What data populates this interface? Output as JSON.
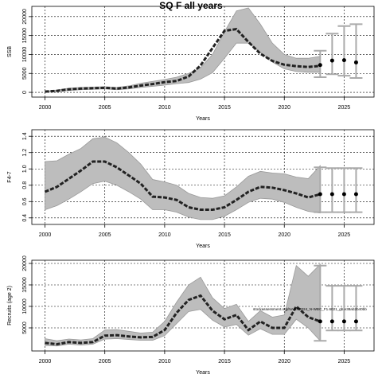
{
  "chart_data": [
    {
      "type": "line",
      "title": "SQ F all years",
      "ylabel": "SSB",
      "xlabel": "Years",
      "xlim": [
        1998.9,
        2027.5
      ],
      "xticks": [
        2000,
        2005,
        2010,
        2015,
        2020,
        2025
      ],
      "ylim": [
        -1250,
        22700
      ],
      "yticks": [
        0,
        5000,
        10000,
        15000,
        20000
      ],
      "grid": true,
      "x": [
        2000,
        2001,
        2002,
        2003,
        2004,
        2005,
        2006,
        2007,
        2008,
        2009,
        2010,
        2011,
        2012,
        2013,
        2014,
        2015,
        2016,
        2017,
        2018,
        2019,
        2020,
        2021,
        2022,
        2023
      ],
      "values": [
        200,
        400,
        800,
        1000,
        1100,
        1200,
        1000,
        1300,
        1800,
        2200,
        2700,
        3000,
        4200,
        7100,
        11700,
        16250,
        16700,
        13300,
        10200,
        8300,
        7300,
        6900,
        6700,
        7000
      ],
      "upper": [
        300,
        600,
        1100,
        1300,
        1400,
        1500,
        1300,
        1700,
        2400,
        2900,
        3400,
        4000,
        5000,
        6500,
        10000,
        16000,
        21500,
        22300,
        18000,
        13000,
        10000,
        9000,
        9000,
        9500
      ],
      "lower": [
        100,
        200,
        500,
        700,
        800,
        900,
        700,
        900,
        1300,
        1600,
        1900,
        2300,
        2600,
        3500,
        5200,
        9000,
        13000,
        13000,
        10500,
        8000,
        6200,
        5500,
        5300,
        5300
      ],
      "forecast": {
        "x": [
          2023,
          2024,
          2025,
          2026
        ],
        "values": [
          7200,
          8400,
          8500,
          7900
        ],
        "lower": [
          4000,
          4800,
          4400,
          3800
        ],
        "upper": [
          11000,
          15500,
          17500,
          18000
        ]
      }
    },
    {
      "type": "line",
      "ylabel": "F4-7",
      "xlabel": "Years",
      "xlim": [
        1998.9,
        2027.5
      ],
      "xticks": [
        2000,
        2005,
        2010,
        2015,
        2020,
        2025
      ],
      "ylim": [
        0.32,
        1.48
      ],
      "yticks": [
        0.4,
        0.6,
        0.8,
        {
          "value": 1,
          "label": "1.0"
        },
        1.2,
        1.4
      ],
      "grid": true,
      "x": [
        2000,
        2001,
        2002,
        2003,
        2004,
        2005,
        2006,
        2007,
        2008,
        2009,
        2010,
        2011,
        2012,
        2013,
        2014,
        2015,
        2016,
        2017,
        2018,
        2019,
        2020,
        2021,
        2022,
        2023
      ],
      "values": [
        0.72,
        0.78,
        0.88,
        0.98,
        1.09,
        1.09,
        1.02,
        0.92,
        0.82,
        0.66,
        0.65,
        0.62,
        0.53,
        0.5,
        0.5,
        0.53,
        0.62,
        0.72,
        0.78,
        0.77,
        0.74,
        0.7,
        0.65,
        0.69
      ],
      "upper": [
        1.09,
        1.1,
        1.18,
        1.25,
        1.37,
        1.39,
        1.32,
        1.2,
        1.06,
        0.87,
        0.84,
        0.8,
        0.7,
        0.65,
        0.64,
        0.67,
        0.78,
        0.91,
        0.97,
        0.95,
        0.94,
        0.9,
        0.88,
        1.04
      ],
      "lower": [
        0.5,
        0.55,
        0.63,
        0.72,
        0.82,
        0.85,
        0.8,
        0.72,
        0.63,
        0.5,
        0.5,
        0.47,
        0.41,
        0.38,
        0.38,
        0.42,
        0.5,
        0.59,
        0.64,
        0.63,
        0.59,
        0.53,
        0.48,
        0.46
      ],
      "forecast": {
        "x": [
          2023,
          2024,
          2025,
          2026
        ],
        "values": [
          0.69,
          0.69,
          0.69,
          0.69
        ],
        "lower": [
          0.47,
          0.47,
          0.47,
          0.47
        ],
        "upper": [
          1.02,
          1.01,
          1.01,
          1.01
        ]
      }
    },
    {
      "type": "line",
      "ylabel": "Recruits (age 2)",
      "xlabel": "Years",
      "xlim": [
        1998.9,
        2027.5
      ],
      "xticks": [
        2000,
        2005,
        2010,
        2015,
        2020,
        2025
      ],
      "ylim": [
        -370,
        20740
      ],
      "yticks": [
        5000,
        10000,
        15000,
        20000
      ],
      "grid": true,
      "annotation": "stockassessment.org/NAMR2024_N-WBC_F1.6021_gb.e38ab2b40bb",
      "x": [
        2000,
        2001,
        2002,
        2003,
        2004,
        2005,
        2006,
        2007,
        2008,
        2009,
        2010,
        2011,
        2012,
        2013,
        2014,
        2015,
        2016,
        2017,
        2018,
        2019,
        2020,
        2021,
        2022,
        2023
      ],
      "values": [
        1500,
        1200,
        1700,
        1500,
        1700,
        3200,
        3300,
        3000,
        2800,
        2900,
        4500,
        8500,
        11500,
        12500,
        9000,
        7000,
        8000,
        4500,
        6500,
        5000,
        5000,
        10000,
        7500,
        6500
      ],
      "upper": [
        2500,
        2000,
        2400,
        2200,
        2500,
        4500,
        4600,
        4200,
        3800,
        4000,
        6500,
        11000,
        15000,
        16800,
        12000,
        9500,
        10500,
        6500,
        9000,
        7500,
        8000,
        19500,
        17000,
        19800
      ],
      "lower": [
        900,
        800,
        1200,
        1000,
        1200,
        2400,
        2500,
        2300,
        2100,
        2100,
        3200,
        6000,
        8800,
        9300,
        6800,
        5200,
        5800,
        3300,
        4800,
        3500,
        3500,
        7000,
        5000,
        2000
      ],
      "forecast": {
        "x": [
          2023,
          2024,
          2025,
          2026
        ],
        "values": [
          6500,
          6500,
          6500,
          6500
        ],
        "lower": [
          2000,
          4400,
          4400,
          4400
        ],
        "upper": [
          19500,
          14800,
          14800,
          14800
        ]
      }
    }
  ]
}
